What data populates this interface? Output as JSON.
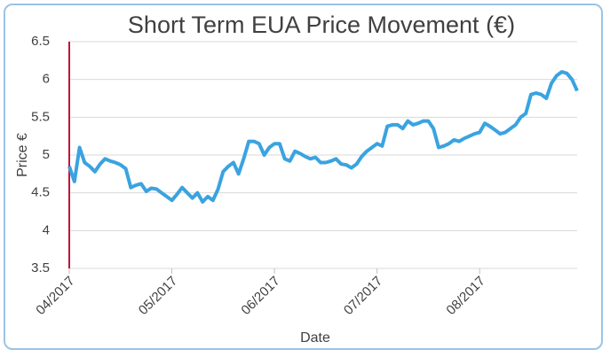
{
  "chart_data": {
    "type": "line",
    "title": "Short Term EUA Price Movement (€)",
    "x_label": "Date",
    "y_label": "Price €",
    "categories": [
      "04/2017",
      null,
      null,
      null,
      null,
      null,
      null,
      null,
      null,
      null,
      null,
      null,
      null,
      null,
      null,
      null,
      null,
      null,
      null,
      null,
      "05/2017",
      null,
      null,
      null,
      null,
      null,
      null,
      null,
      null,
      null,
      null,
      null,
      null,
      null,
      null,
      null,
      null,
      null,
      null,
      null,
      "06/2017",
      null,
      null,
      null,
      null,
      null,
      null,
      null,
      null,
      null,
      null,
      null,
      null,
      null,
      null,
      null,
      null,
      null,
      null,
      null,
      "07/2017",
      null,
      null,
      null,
      null,
      null,
      null,
      null,
      null,
      null,
      null,
      null,
      null,
      null,
      null,
      null,
      null,
      null,
      null,
      null,
      "08/2017",
      null,
      null,
      null,
      null,
      null,
      null,
      null,
      null,
      null,
      null,
      null,
      null,
      null,
      null,
      null,
      null,
      null,
      null,
      null
    ],
    "series": [
      {
        "name": "EUA",
        "color": "#3aa3e0",
        "values": [
          4.85,
          4.65,
          5.1,
          4.9,
          4.85,
          4.78,
          4.88,
          4.95,
          4.92,
          4.9,
          4.87,
          4.82,
          4.57,
          4.6,
          4.62,
          4.52,
          4.56,
          4.55,
          4.5,
          4.45,
          4.4,
          4.48,
          4.57,
          4.5,
          4.43,
          4.5,
          4.38,
          4.45,
          4.4,
          4.55,
          4.78,
          4.85,
          4.9,
          4.75,
          4.95,
          5.18,
          5.18,
          5.15,
          5.0,
          5.1,
          5.15,
          5.15,
          4.95,
          4.92,
          5.05,
          5.02,
          4.98,
          4.95,
          4.97,
          4.9,
          4.9,
          4.92,
          4.95,
          4.88,
          4.87,
          4.83,
          4.88,
          4.98,
          5.05,
          5.1,
          5.15,
          5.12,
          5.38,
          5.4,
          5.4,
          5.35,
          5.45,
          5.4,
          5.42,
          5.45,
          5.45,
          5.35,
          5.1,
          5.12,
          5.15,
          5.2,
          5.18,
          5.22,
          5.25,
          5.28,
          5.3,
          5.42,
          5.38,
          5.33,
          5.28,
          5.3,
          5.35,
          5.4,
          5.5,
          5.55,
          5.8,
          5.82,
          5.8,
          5.75,
          5.95,
          6.05,
          6.1,
          6.08,
          6.0,
          5.85
        ]
      }
    ],
    "ylim": [
      3.5,
      6.5
    ],
    "yticks": [
      3.5,
      4,
      4.5,
      5,
      5.5,
      6,
      6.5
    ],
    "grid": true
  }
}
